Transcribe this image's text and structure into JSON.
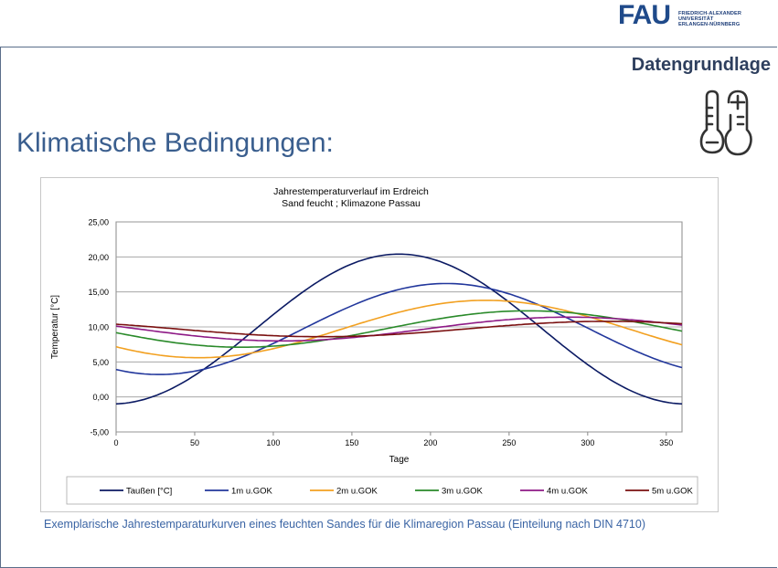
{
  "header": {
    "section_label": "Datengrundlage",
    "logo_text": "FAU",
    "logo_lines": [
      "FRIEDRICH-ALEXANDER",
      "UNIVERSITÄT",
      "ERLANGEN-NÜRNBERG"
    ],
    "icon": "thermometer-plus-minus-icon"
  },
  "slide": {
    "title": "Klimatische Bedingungen:",
    "caption": "Exemplarische Jahrestemparaturkurven eines feuchten Sandes für die Klimaregion Passau (Einteilung nach DIN 4710)"
  },
  "chart_data": {
    "type": "line",
    "title": "Jahrestemperaturverlauf im Erdreich",
    "subtitle": "Sand feucht ; Klimazone Passau",
    "xlabel": "Tage",
    "ylabel": "Temperatur [°C]",
    "xlim": [
      0,
      360
    ],
    "ylim": [
      -5,
      25
    ],
    "xticks": [
      "0",
      "50",
      "100",
      "150",
      "200",
      "250",
      "300",
      "350"
    ],
    "yticks": [
      "-5,00",
      "0,00",
      "5,00",
      "10,00",
      "15,00",
      "20,00",
      "25,00"
    ],
    "grid": true,
    "legend_position": "bottom",
    "series": [
      {
        "name": "Taußen [°C]",
        "color": "#0b1a63",
        "mean": 9.7,
        "amp": 10.7,
        "peak_day": 180
      },
      {
        "name": "1m u.GOK",
        "color": "#22379c",
        "mean": 9.7,
        "amp": 6.5,
        "peak_day": 210
      },
      {
        "name": "2m u.GOK",
        "color": "#f2a020",
        "mean": 9.7,
        "amp": 4.1,
        "peak_day": 235
      },
      {
        "name": "3m u.GOK",
        "color": "#2a8a2a",
        "mean": 9.7,
        "amp": 2.6,
        "peak_day": 262
      },
      {
        "name": "4m u.GOK",
        "color": "#8e1a86",
        "mean": 9.7,
        "amp": 1.7,
        "peak_day": 288
      },
      {
        "name": "5m u.GOK",
        "color": "#7a1010",
        "mean": 9.7,
        "amp": 1.1,
        "peak_day": 313
      }
    ]
  }
}
